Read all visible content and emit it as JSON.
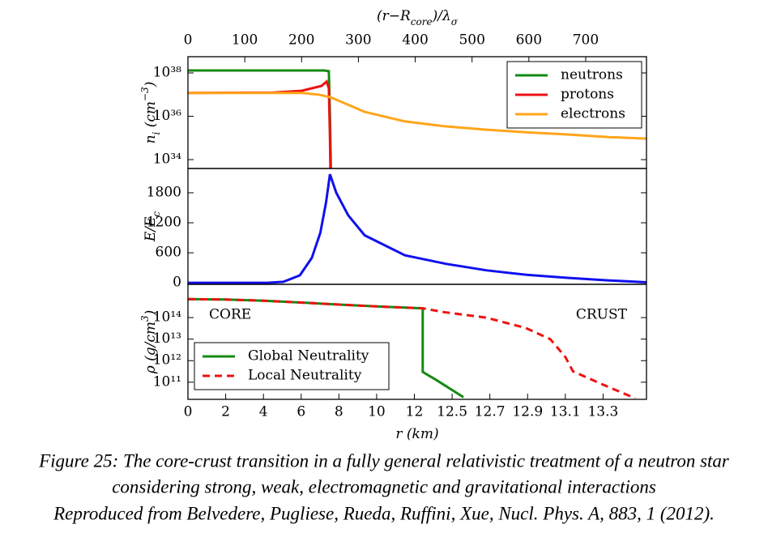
{
  "chart_data": [
    {
      "type": "line",
      "xaxis": "top",
      "xlabel": [
        "(r−R",
        {
          "sub": "core"
        },
        ")/λ",
        {
          "sub": "σ"
        }
      ],
      "ylabel": [
        "n",
        {
          "sub": "i"
        },
        " (cm",
        {
          "sup": "−3"
        },
        ")"
      ],
      "xlim": [
        0,
        807
      ],
      "xticks": [
        0,
        100,
        200,
        300,
        400,
        500,
        600,
        700
      ],
      "yscale": "log",
      "ylim": [
        3.9e+33,
        5.6e+38
      ],
      "yticks": [
        {
          "value": 1e+34,
          "label": "10³⁴"
        },
        {
          "value": 1e+36,
          "label": "10³⁶"
        },
        {
          "value": 1e+38,
          "label": "10³⁸"
        }
      ],
      "legend": "upper right",
      "series": [
        {
          "name": "neutrons",
          "color": "#138a13",
          "x": [
            0,
            240,
            248,
            250,
            252
          ],
          "values": [
            1.3e+38,
            1.3e+38,
            1.2e+38,
            1e+36,
            1e+33
          ]
        },
        {
          "name": "protons",
          "color": "#ee1111",
          "x": [
            0,
            150,
            200,
            235,
            244,
            248,
            250,
            251
          ],
          "values": [
            1.2e+37,
            1.25e+37,
            1.5e+37,
            2.5e+37,
            4e+37,
            2e+37,
            1e+35,
            1e+33
          ]
        },
        {
          "name": "electrons",
          "color": "#ffa51a",
          "x": [
            0,
            200,
            230,
            251,
            311,
            382,
            450,
            525,
            600,
            668,
            740,
            807
          ],
          "values": [
            1.2e+37,
            1.2e+37,
            1e+37,
            7.6e+36,
            1.6e+36,
            5.8e+35,
            3.5e+35,
            2.4e+35,
            1.8e+35,
            1.45e+35,
            1.1e+35,
            9.3e+34
          ]
        }
      ]
    },
    {
      "type": "line",
      "ylabel": [
        "E/E",
        {
          "sub": "c"
        }
      ],
      "xlim": [
        0,
        807
      ],
      "ylim": [
        -30,
        2285
      ],
      "yticks": [
        0,
        600,
        1200,
        1800
      ],
      "series": [
        {
          "color": "#1010ee",
          "x": [
            0,
            140,
            168,
            197,
            218,
            233,
            243,
            250,
            261,
            282,
            311,
            382,
            454,
            525,
            596,
            668,
            739,
            807
          ],
          "values": [
            0,
            0,
            20,
            150,
            500,
            1000,
            1600,
            2170,
            1800,
            1350,
            950,
            550,
            380,
            250,
            160,
            100,
            50,
            10
          ]
        }
      ]
    },
    {
      "type": "line",
      "xaxis": "bottom",
      "xscale": "segmented",
      "xlabel": [
        "r (km)"
      ],
      "ylabel": [
        "ρ (g/cm",
        {
          "sup": "3"
        },
        ")"
      ],
      "xlim": [
        0,
        13.53
      ],
      "xticks": [
        0,
        2,
        4,
        6,
        8,
        10,
        12,
        12.5,
        12.7,
        12.9,
        13.1,
        13.3
      ],
      "yscale": "log",
      "ylim": [
        16000000000.0,
        3500000000000000.0
      ],
      "yticks": [
        {
          "value": 100000000000.0,
          "label": "10¹¹"
        },
        {
          "value": 1000000000000.0,
          "label": "10¹²"
        },
        {
          "value": 10000000000000.0,
          "label": "10¹³"
        },
        {
          "value": 100000000000000.0,
          "label": "10¹⁴"
        }
      ],
      "annotations": [
        "CORE",
        "CRUST"
      ],
      "legend": "lower left",
      "series": [
        {
          "name": "Global Neutrality",
          "color": "#138a13",
          "style": "solid",
          "x": [
            0,
            2,
            4,
            6,
            8,
            10,
            12,
            12.11,
            12.11,
            12.3,
            12.56
          ],
          "values": [
            720000000000000.0,
            690000000000000.0,
            610000000000000.0,
            500000000000000.0,
            400000000000000.0,
            330000000000000.0,
            280000000000000.0,
            270000000000000.0,
            300000000000.0,
            120000000000.0,
            20000000000.0
          ]
        },
        {
          "name": "Local Neutrality",
          "color": "#ee1111",
          "style": "dashed",
          "x": [
            0,
            2,
            4,
            6,
            8,
            10,
            12,
            12.11,
            12.39,
            12.68,
            12.89,
            13.02,
            13.1,
            13.14,
            13.3,
            13.47
          ],
          "values": [
            720000000000000.0,
            690000000000000.0,
            610000000000000.0,
            500000000000000.0,
            400000000000000.0,
            330000000000000.0,
            280000000000000.0,
            270000000000000.0,
            180000000000000.0,
            100000000000000.0,
            33000000000000.0,
            10000000000000.0,
            1500000000000.0,
            320000000000.0,
            77000000000.0,
            18000000000.0
          ]
        }
      ]
    }
  ],
  "caption": [
    "Figure 25: The core-crust transition in a fully general relativistic treatment of a neutron star",
    "considering strong, weak, electromagnetic and gravitational interactions",
    "Reproduced from Belvedere, Pugliese, Rueda, Ruffini, Xue, Nucl. Phys. A, 883, 1 (2012)."
  ]
}
